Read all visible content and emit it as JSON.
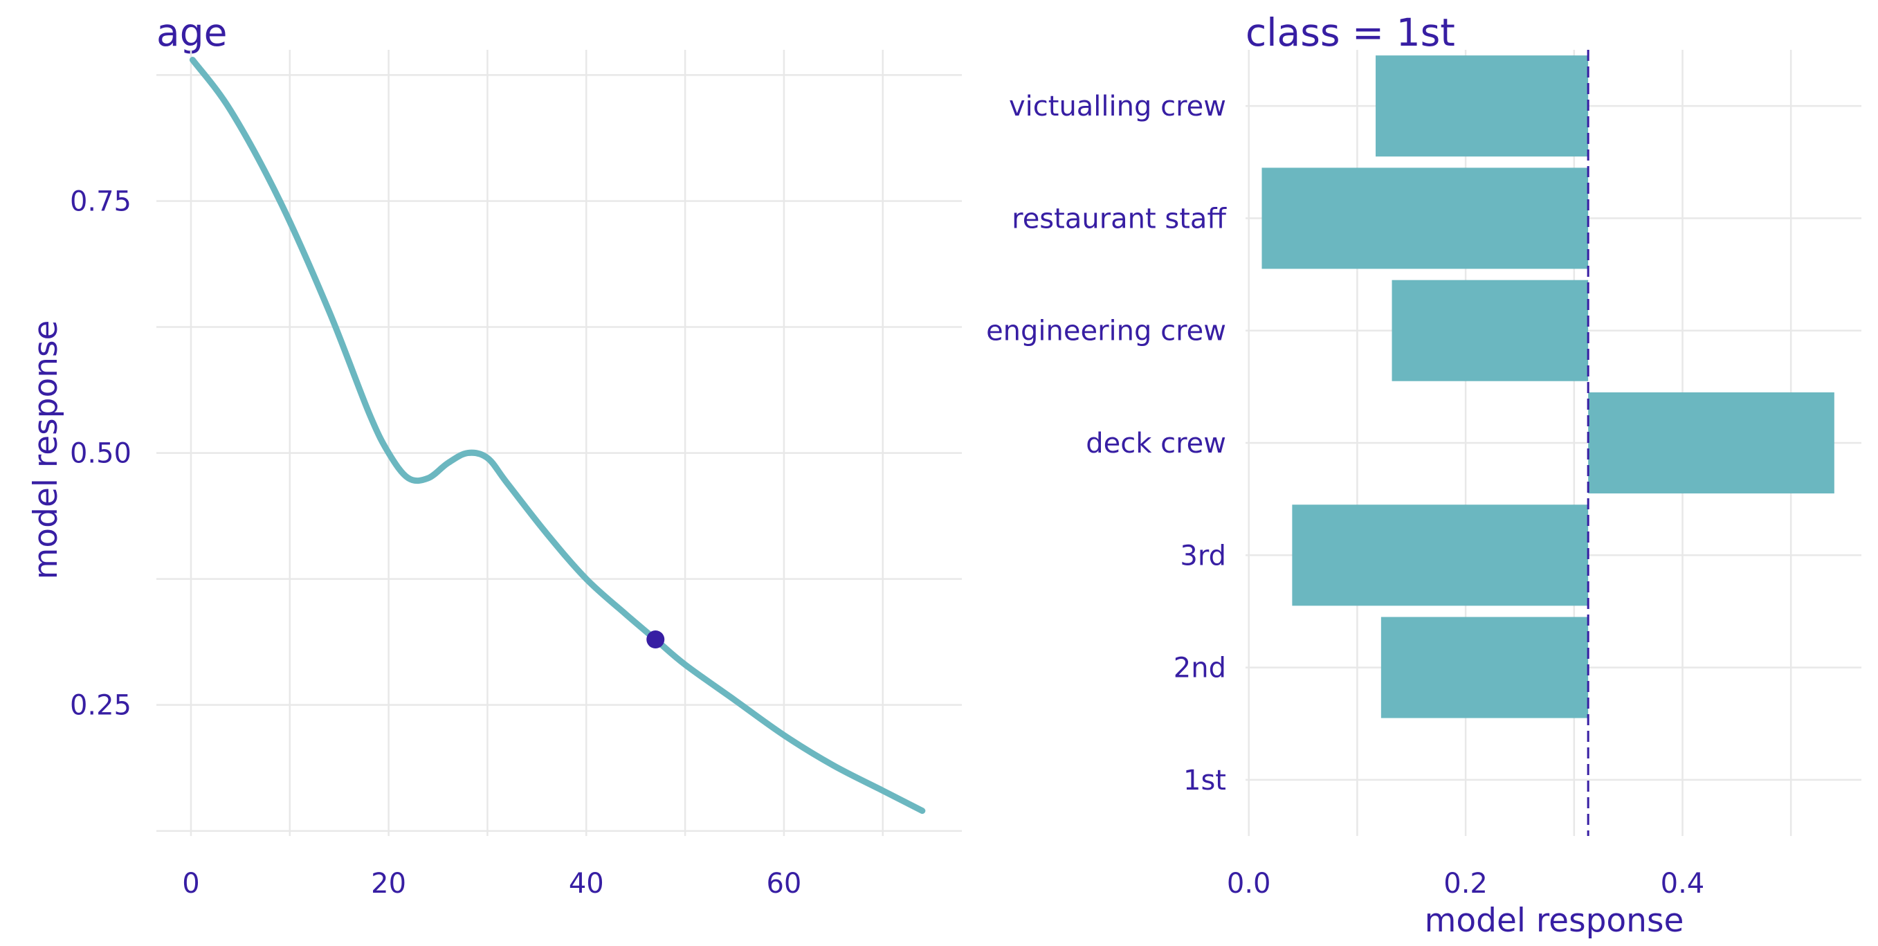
{
  "colors": {
    "series": "#6bb7c0",
    "text": "#371ea3",
    "grid": "#e8e8e8",
    "reference_line": "#371ea3",
    "background": "#ffffff"
  },
  "chart_data": [
    {
      "type": "line",
      "title": "age",
      "xlabel": "",
      "ylabel": "model response",
      "xlim": [
        -3.5,
        78
      ],
      "ylim": [
        0.12,
        0.9
      ],
      "xticks": [
        0,
        20,
        40,
        60
      ],
      "xtick_labels": [
        "0",
        "20",
        "40",
        "60"
      ],
      "yticks": [
        0.25,
        0.5,
        0.75
      ],
      "ytick_labels": [
        "0.25",
        "0.50",
        "0.75"
      ],
      "grid": true,
      "series": [
        {
          "x": [
            0.17,
            4,
            9,
            14,
            18,
            20,
            22,
            24,
            26,
            28,
            30,
            32,
            36,
            40,
            44,
            47,
            50,
            55,
            60,
            65,
            70,
            74
          ],
          "y": [
            0.89,
            0.84,
            0.75,
            0.64,
            0.54,
            0.5,
            0.475,
            0.475,
            0.49,
            0.5,
            0.495,
            0.47,
            0.42,
            0.375,
            0.34,
            0.315,
            0.29,
            0.255,
            0.22,
            0.19,
            0.165,
            0.145
          ]
        }
      ],
      "observation": {
        "x": 47,
        "y": 0.315
      }
    },
    {
      "type": "bar",
      "orientation": "horizontal",
      "title": "class = 1st",
      "xlabel": "model response",
      "ylabel": "",
      "xlim": [
        -0.003,
        0.565
      ],
      "xticks": [
        0.0,
        0.2,
        0.4
      ],
      "xtick_labels": [
        "0.0",
        "0.2",
        "0.4"
      ],
      "grid": true,
      "reference_value": 0.313,
      "categories": [
        "victualling crew",
        "restaurant staff",
        "engineering crew",
        "deck crew",
        "3rd",
        "2nd",
        "1st"
      ],
      "values": [
        0.117,
        0.012,
        0.132,
        0.54,
        0.04,
        0.122,
        0.313
      ]
    }
  ]
}
